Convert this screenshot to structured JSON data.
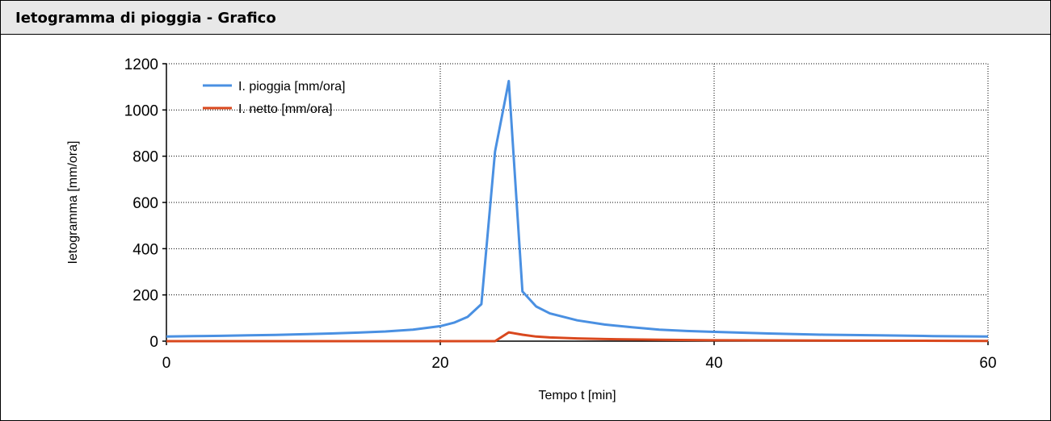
{
  "panel": {
    "title": "Ietogramma di pioggia - Grafico"
  },
  "chart_data": {
    "type": "line",
    "title": "",
    "xlabel": "Tempo t [min]",
    "ylabel": "Ietogramma [mm/ora]",
    "xlim": [
      0,
      60
    ],
    "ylim": [
      0,
      1200
    ],
    "xticks": [
      0,
      20,
      40,
      60
    ],
    "yticks": [
      0,
      200,
      400,
      600,
      800,
      1000,
      1200
    ],
    "grid": true,
    "legend_position": "top-left",
    "series": [
      {
        "name": "I. pioggia [mm/ora]",
        "color": "#4a90e2",
        "x": [
          0,
          2,
          4,
          6,
          8,
          10,
          12,
          14,
          16,
          18,
          20,
          21,
          22,
          23,
          24,
          25,
          26,
          27,
          28,
          30,
          32,
          34,
          36,
          38,
          40,
          44,
          48,
          52,
          56,
          60
        ],
        "y": [
          20,
          22,
          23,
          25,
          27,
          30,
          33,
          37,
          42,
          50,
          65,
          80,
          105,
          160,
          820,
          1125,
          215,
          150,
          120,
          90,
          72,
          60,
          50,
          44,
          40,
          33,
          28,
          25,
          22,
          20
        ]
      },
      {
        "name": "I. netto [mm/ora]",
        "color": "#d9481e",
        "x": [
          0,
          10,
          20,
          24,
          25,
          26,
          27,
          28,
          30,
          32,
          36,
          40,
          50,
          60
        ],
        "y": [
          0,
          0,
          0,
          0,
          38,
          28,
          20,
          16,
          12,
          9,
          6,
          4,
          2,
          1
        ]
      }
    ]
  }
}
